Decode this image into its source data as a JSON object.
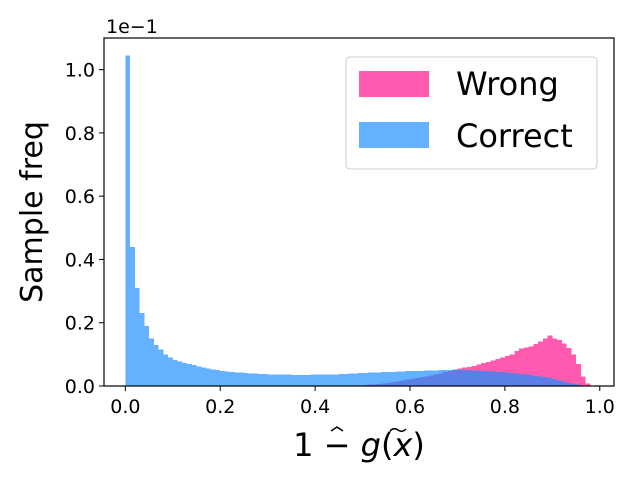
{
  "chart_data": {
    "type": "bar",
    "histogram": true,
    "bin_width": 0.01,
    "scale_label": "1e−1",
    "xlabel_parts": [
      "1 − ",
      "g",
      "(",
      "x",
      ")"
    ],
    "ylabel": "Sample freq",
    "xlim": [
      -0.045,
      1.03
    ],
    "ylim": [
      0,
      1.1
    ],
    "xticks": [
      0.0,
      0.2,
      0.4,
      0.6,
      0.8,
      1.0
    ],
    "xtick_labels": [
      "0.0",
      "0.2",
      "0.4",
      "0.6",
      "0.8",
      "1.0"
    ],
    "yticks": [
      0.0,
      0.2,
      0.4,
      0.6,
      0.8,
      1.0
    ],
    "ytick_labels": [
      "0.0",
      "0.2",
      "0.4",
      "0.6",
      "0.8",
      "1.0"
    ],
    "grid": false,
    "legend_position": "top-right",
    "colors": {
      "wrong": "#ff5aad",
      "correct": "#64b2ff",
      "overlap": "#5a7fe6"
    },
    "series": [
      {
        "name": "Wrong",
        "x_start": 0.0,
        "values": [
          0,
          0,
          0,
          0,
          0,
          0,
          0,
          0,
          0,
          0,
          0,
          0,
          0,
          0,
          0,
          0,
          0,
          0,
          0,
          0,
          0,
          0,
          0,
          0,
          0,
          0,
          0,
          0,
          0,
          0,
          0,
          0,
          0,
          0,
          0,
          0,
          0,
          0,
          0,
          0,
          0,
          0,
          0,
          0,
          0,
          0,
          0,
          0,
          0.001,
          0.002,
          0.003,
          0.004,
          0.005,
          0.006,
          0.008,
          0.01,
          0.012,
          0.015,
          0.018,
          0.02,
          0.022,
          0.025,
          0.028,
          0.03,
          0.033,
          0.036,
          0.04,
          0.044,
          0.048,
          0.052,
          0.055,
          0.058,
          0.06,
          0.064,
          0.068,
          0.072,
          0.076,
          0.08,
          0.085,
          0.09,
          0.095,
          0.1,
          0.11,
          0.118,
          0.122,
          0.125,
          0.132,
          0.14,
          0.15,
          0.16,
          0.15,
          0.145,
          0.135,
          0.12,
          0.1,
          0.07,
          0.03,
          0.008,
          0,
          0
        ]
      },
      {
        "name": "Correct",
        "x_start": 0.0,
        "values": [
          1.045,
          0.44,
          0.31,
          0.23,
          0.19,
          0.15,
          0.13,
          0.115,
          0.1,
          0.09,
          0.082,
          0.078,
          0.073,
          0.07,
          0.066,
          0.062,
          0.058,
          0.055,
          0.052,
          0.05,
          0.048,
          0.046,
          0.045,
          0.043,
          0.042,
          0.041,
          0.04,
          0.039,
          0.038,
          0.038,
          0.037,
          0.037,
          0.036,
          0.036,
          0.036,
          0.035,
          0.035,
          0.035,
          0.035,
          0.036,
          0.036,
          0.036,
          0.037,
          0.037,
          0.037,
          0.038,
          0.038,
          0.039,
          0.04,
          0.041,
          0.041,
          0.042,
          0.043,
          0.043,
          0.044,
          0.045,
          0.045,
          0.046,
          0.046,
          0.047,
          0.047,
          0.048,
          0.048,
          0.049,
          0.049,
          0.049,
          0.05,
          0.05,
          0.05,
          0.05,
          0.05,
          0.05,
          0.05,
          0.049,
          0.049,
          0.048,
          0.047,
          0.046,
          0.045,
          0.044,
          0.043,
          0.041,
          0.04,
          0.038,
          0.036,
          0.034,
          0.032,
          0.03,
          0.028,
          0.025,
          0.022,
          0.018,
          0.014,
          0.01,
          0.007,
          0.004,
          0.002,
          0.001,
          0,
          0
        ]
      }
    ]
  }
}
